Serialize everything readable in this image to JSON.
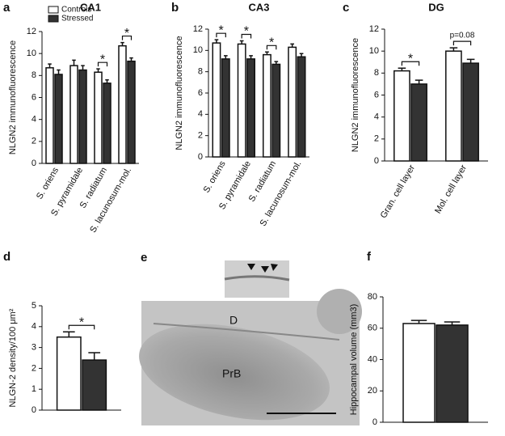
{
  "chart_data": [
    {
      "type": "bar",
      "panel": "a",
      "title": "CA1",
      "y_label": "NLGN2 immunofluorescence",
      "categories": [
        "S. oriens",
        "S. pyramidale",
        "S. radiatum",
        "S. lacunosum-mol."
      ],
      "series": [
        {
          "name": "Controls",
          "color": "#ffffff",
          "values": [
            8.7,
            8.9,
            8.3,
            10.7
          ],
          "errors": [
            0.35,
            0.5,
            0.3,
            0.3
          ]
        },
        {
          "name": "Stressed",
          "color": "#333333",
          "values": [
            8.1,
            8.5,
            7.3,
            9.3
          ],
          "errors": [
            0.4,
            0.4,
            0.3,
            0.3
          ]
        }
      ],
      "significance": [
        null,
        null,
        "*",
        "*"
      ],
      "ylim": [
        0,
        12
      ],
      "yticks": [
        0,
        2,
        4,
        6,
        8,
        10,
        12
      ]
    },
    {
      "type": "bar",
      "panel": "b",
      "title": "CA3",
      "y_label": "NLGN2 immunofluorescence",
      "categories": [
        "S. oriens",
        "S. pyramidale",
        "S. radiatum",
        "S. lacunosum-mol."
      ],
      "series": [
        {
          "color": "#ffffff",
          "values": [
            10.7,
            10.6,
            9.6,
            10.3
          ],
          "errors": [
            0.3,
            0.3,
            0.25,
            0.3
          ]
        },
        {
          "color": "#333333",
          "values": [
            9.2,
            9.2,
            8.7,
            9.4
          ],
          "errors": [
            0.3,
            0.3,
            0.25,
            0.3
          ]
        }
      ],
      "significance": [
        "*",
        "*",
        "*",
        null
      ],
      "ylim": [
        0,
        12
      ],
      "yticks": [
        0,
        2,
        4,
        6,
        8,
        10,
        12
      ]
    },
    {
      "type": "bar",
      "panel": "c",
      "title": "DG",
      "y_label": "NLGN2 immunofluorescence",
      "categories": [
        "Gran. cell layer",
        "Mol. cell layer"
      ],
      "series": [
        {
          "color": "#ffffff",
          "values": [
            8.2,
            10.0
          ],
          "errors": [
            0.25,
            0.3
          ]
        },
        {
          "color": "#333333",
          "values": [
            7.0,
            8.9
          ],
          "errors": [
            0.35,
            0.35
          ]
        }
      ],
      "significance": [
        "*",
        "p=0.08"
      ],
      "ylim": [
        0,
        12
      ],
      "yticks": [
        0,
        2,
        4,
        6,
        8,
        10,
        12
      ]
    },
    {
      "type": "bar",
      "panel": "d",
      "y_label": "NLGN-2 density/100 μm²",
      "categories": [
        null
      ],
      "series": [
        {
          "color": "#ffffff",
          "values": [
            3.5
          ],
          "errors": [
            0.25
          ]
        },
        {
          "color": "#333333",
          "values": [
            2.4
          ],
          "errors": [
            0.35
          ]
        }
      ],
      "significance": [
        "*"
      ],
      "ylim": [
        0,
        5
      ],
      "yticks": [
        0,
        1,
        2,
        3,
        4,
        5
      ]
    },
    {
      "type": "bar",
      "panel": "f",
      "y_label": "Hippocampal volume (mm3)",
      "categories": [
        null
      ],
      "series": [
        {
          "color": "#ffffff",
          "values": [
            63
          ],
          "errors": [
            2
          ]
        },
        {
          "color": "#333333",
          "values": [
            62
          ],
          "errors": [
            2
          ]
        }
      ],
      "significance": [
        null
      ],
      "ylim": [
        0,
        80
      ],
      "yticks": [
        0,
        20,
        40,
        60,
        80
      ]
    }
  ],
  "micrograph": {
    "panel": "e",
    "labels": [
      "D",
      "PrB"
    ]
  }
}
